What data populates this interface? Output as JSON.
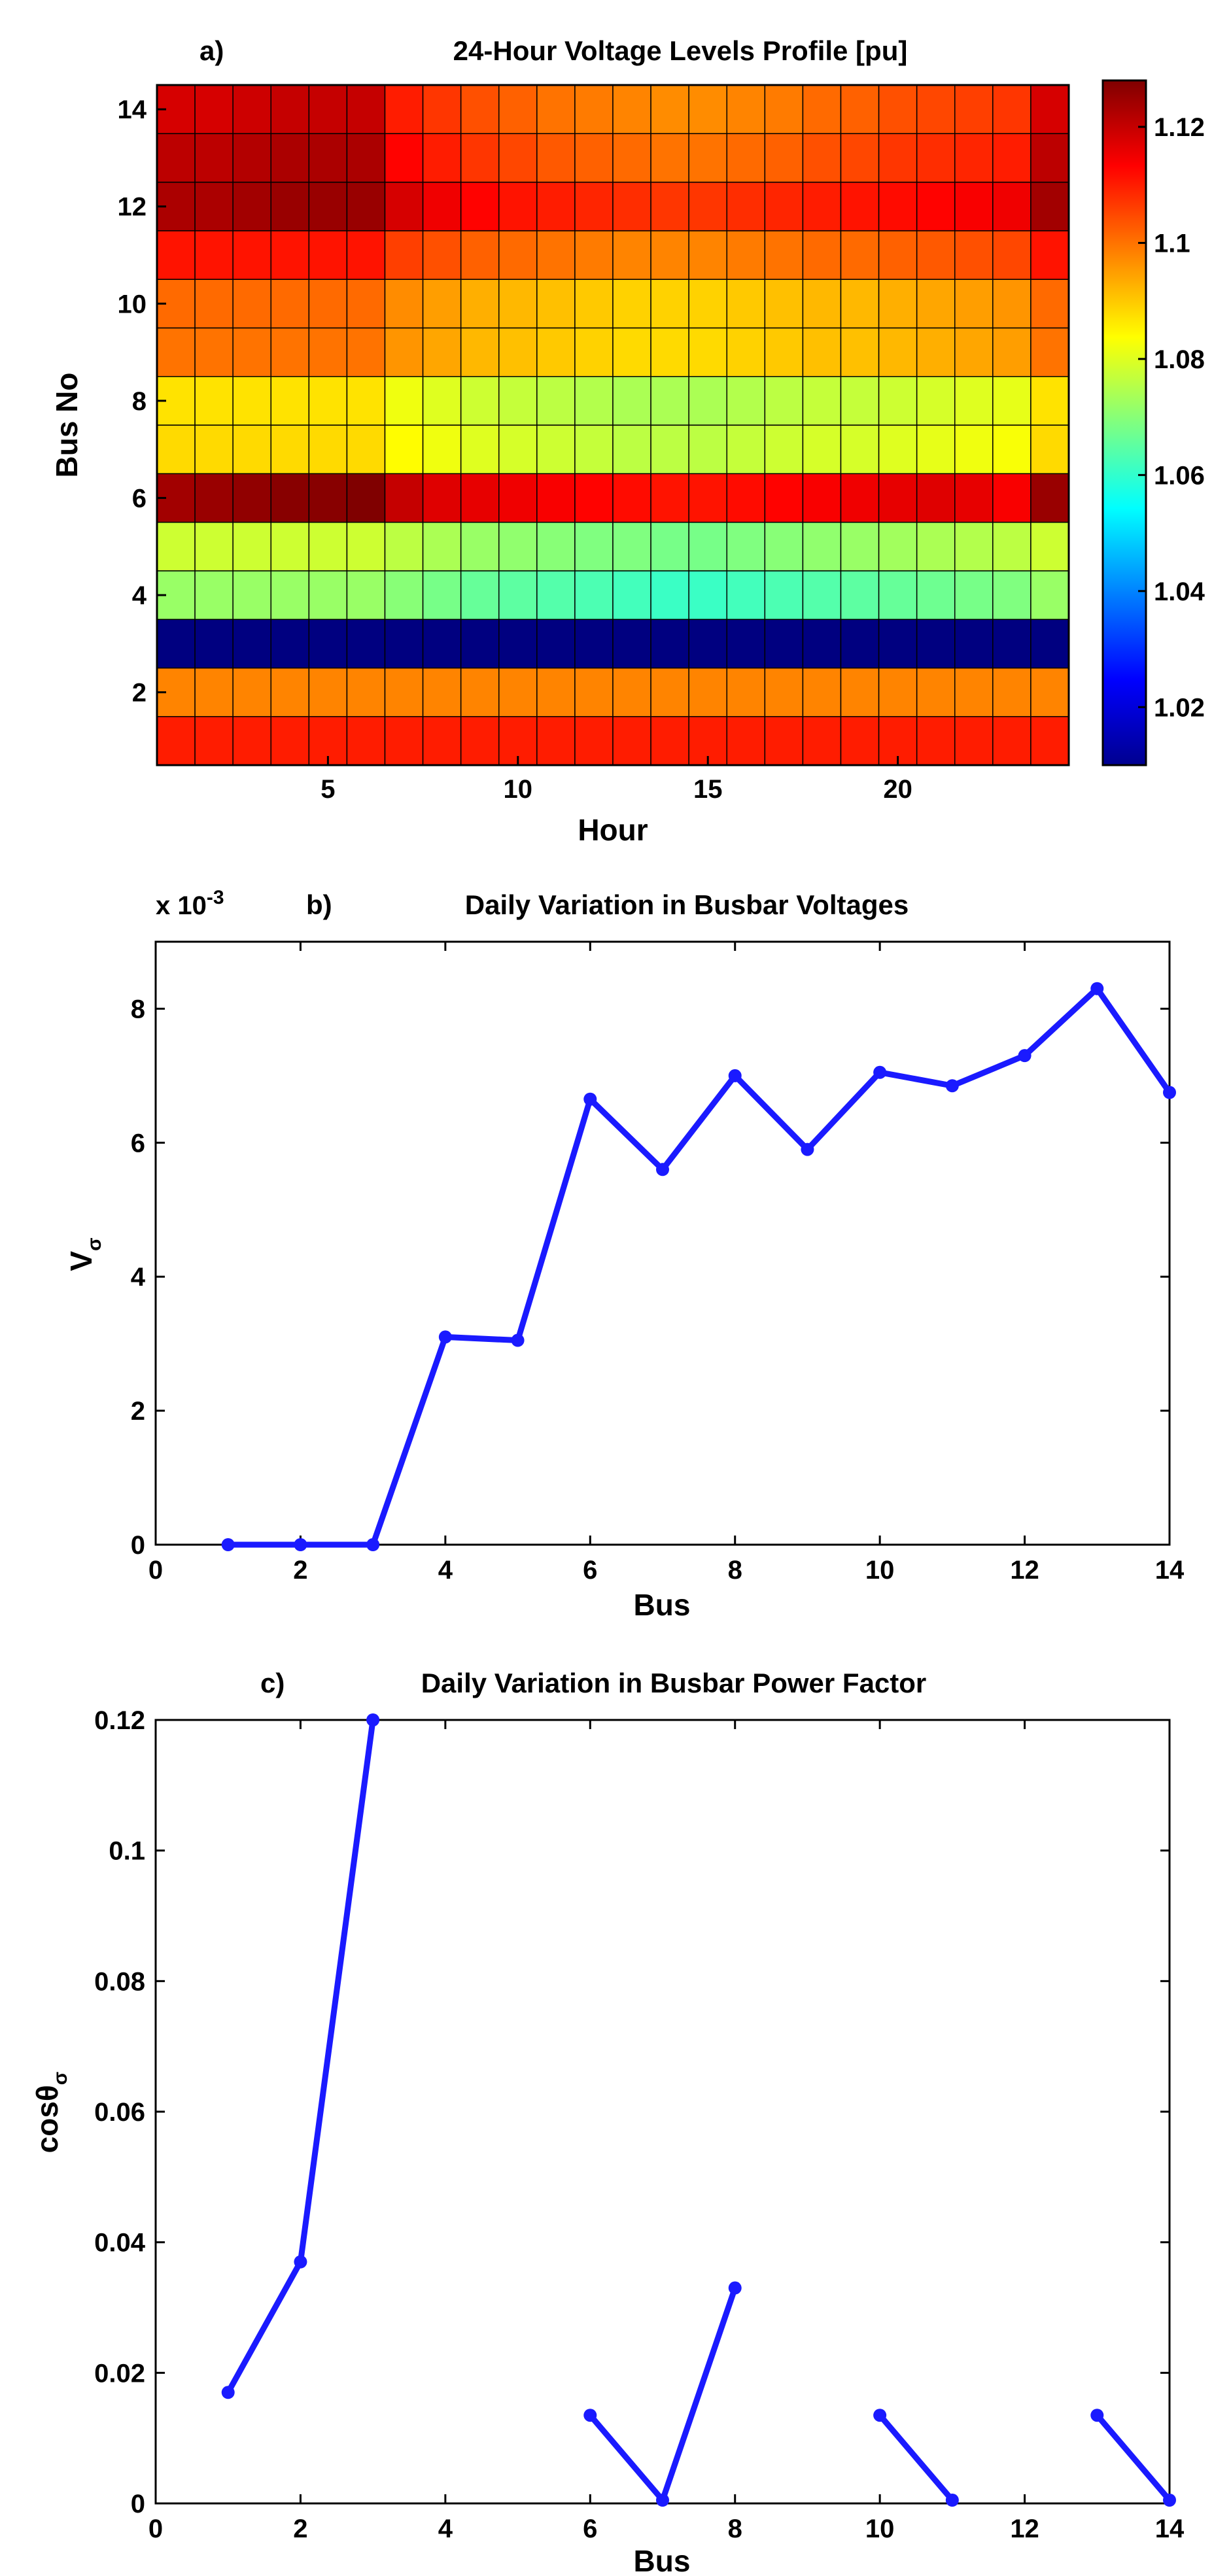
{
  "chart_data": [
    {
      "type": "heatmap",
      "panel": "a)",
      "title": "24-Hour Voltage Levels Profile [pu]",
      "xlabel": "Hour",
      "ylabel": "Bus No",
      "x_ticks": [
        "5",
        "10",
        "15",
        "20"
      ],
      "y_ticks": [
        "2",
        "4",
        "6",
        "8",
        "10",
        "12",
        "14"
      ],
      "colorbar_ticks": [
        "1.02",
        "1.04",
        "1.06",
        "1.08",
        "1.1",
        "1.12"
      ],
      "colorbar_range": [
        1.01,
        1.128
      ],
      "colormap": "jet",
      "hours": [
        1,
        2,
        3,
        4,
        5,
        6,
        7,
        8,
        9,
        10,
        11,
        12,
        13,
        14,
        15,
        16,
        17,
        18,
        19,
        20,
        21,
        22,
        23,
        24
      ],
      "buses": [
        1,
        2,
        3,
        4,
        5,
        6,
        7,
        8,
        9,
        10,
        11,
        12,
        13,
        14
      ],
      "values": [
        [
          1.11,
          1.11,
          1.11,
          1.11,
          1.11,
          1.11,
          1.11,
          1.11,
          1.11,
          1.11,
          1.11,
          1.11,
          1.11,
          1.11,
          1.11,
          1.11,
          1.11,
          1.11,
          1.11,
          1.11,
          1.11,
          1.11,
          1.11,
          1.11
        ],
        [
          1.098,
          1.098,
          1.098,
          1.098,
          1.098,
          1.098,
          1.098,
          1.098,
          1.098,
          1.098,
          1.098,
          1.098,
          1.098,
          1.098,
          1.098,
          1.098,
          1.098,
          1.098,
          1.098,
          1.098,
          1.098,
          1.098,
          1.098,
          1.098
        ],
        [
          1.01,
          1.01,
          1.01,
          1.01,
          1.01,
          1.01,
          1.01,
          1.01,
          1.01,
          1.01,
          1.01,
          1.01,
          1.01,
          1.01,
          1.01,
          1.01,
          1.01,
          1.01,
          1.01,
          1.01,
          1.01,
          1.01,
          1.01,
          1.01
        ],
        [
          1.072,
          1.072,
          1.072,
          1.072,
          1.072,
          1.072,
          1.07,
          1.068,
          1.066,
          1.065,
          1.064,
          1.063,
          1.062,
          1.061,
          1.061,
          1.062,
          1.063,
          1.064,
          1.065,
          1.066,
          1.067,
          1.068,
          1.069,
          1.072
        ],
        [
          1.078,
          1.078,
          1.078,
          1.078,
          1.078,
          1.078,
          1.076,
          1.074,
          1.072,
          1.071,
          1.07,
          1.069,
          1.069,
          1.068,
          1.068,
          1.069,
          1.07,
          1.071,
          1.072,
          1.073,
          1.074,
          1.075,
          1.076,
          1.078
        ],
        [
          1.124,
          1.125,
          1.126,
          1.127,
          1.127,
          1.128,
          1.12,
          1.117,
          1.116,
          1.115,
          1.114,
          1.113,
          1.112,
          1.111,
          1.111,
          1.112,
          1.113,
          1.114,
          1.115,
          1.116,
          1.117,
          1.116,
          1.114,
          1.125
        ],
        [
          1.088,
          1.088,
          1.088,
          1.088,
          1.088,
          1.088,
          1.084,
          1.082,
          1.08,
          1.079,
          1.078,
          1.077,
          1.076,
          1.076,
          1.076,
          1.077,
          1.078,
          1.079,
          1.079,
          1.08,
          1.081,
          1.082,
          1.083,
          1.088
        ],
        [
          1.087,
          1.087,
          1.087,
          1.087,
          1.087,
          1.087,
          1.082,
          1.08,
          1.078,
          1.077,
          1.076,
          1.075,
          1.074,
          1.074,
          1.074,
          1.075,
          1.076,
          1.077,
          1.077,
          1.078,
          1.079,
          1.08,
          1.081,
          1.087
        ],
        [
          1.1,
          1.1,
          1.1,
          1.1,
          1.1,
          1.1,
          1.096,
          1.094,
          1.092,
          1.091,
          1.09,
          1.089,
          1.088,
          1.088,
          1.088,
          1.089,
          1.09,
          1.091,
          1.091,
          1.092,
          1.093,
          1.094,
          1.095,
          1.1
        ],
        [
          1.101,
          1.101,
          1.101,
          1.101,
          1.101,
          1.101,
          1.097,
          1.095,
          1.093,
          1.092,
          1.091,
          1.09,
          1.089,
          1.089,
          1.089,
          1.09,
          1.091,
          1.092,
          1.092,
          1.093,
          1.094,
          1.095,
          1.096,
          1.101
        ],
        [
          1.111,
          1.111,
          1.111,
          1.111,
          1.111,
          1.111,
          1.106,
          1.104,
          1.102,
          1.101,
          1.1,
          1.099,
          1.098,
          1.098,
          1.098,
          1.099,
          1.1,
          1.101,
          1.101,
          1.102,
          1.103,
          1.104,
          1.105,
          1.111
        ],
        [
          1.123,
          1.123,
          1.124,
          1.125,
          1.125,
          1.125,
          1.118,
          1.115,
          1.113,
          1.111,
          1.11,
          1.109,
          1.108,
          1.107,
          1.107,
          1.108,
          1.109,
          1.11,
          1.111,
          1.112,
          1.113,
          1.114,
          1.115,
          1.124
        ],
        [
          1.121,
          1.121,
          1.122,
          1.123,
          1.123,
          1.123,
          1.113,
          1.11,
          1.107,
          1.105,
          1.103,
          1.102,
          1.101,
          1.1,
          1.1,
          1.101,
          1.102,
          1.104,
          1.105,
          1.107,
          1.108,
          1.109,
          1.11,
          1.121
        ],
        [
          1.118,
          1.118,
          1.119,
          1.12,
          1.12,
          1.12,
          1.11,
          1.107,
          1.104,
          1.102,
          1.1,
          1.099,
          1.098,
          1.097,
          1.097,
          1.098,
          1.099,
          1.101,
          1.102,
          1.104,
          1.105,
          1.106,
          1.107,
          1.118
        ]
      ]
    },
    {
      "type": "line",
      "panel": "b)",
      "title": "Daily Variation in Busbar Voltages",
      "xlabel": "Bus",
      "ylabel": "V",
      "ylabel_subscript": "σ",
      "y_multiplier": "x 10",
      "y_multiplier_exponent": "-3",
      "xlim": [
        0,
        14
      ],
      "ylim": [
        0,
        9
      ],
      "x_ticks": [
        "0",
        "2",
        "4",
        "6",
        "8",
        "10",
        "12",
        "14"
      ],
      "y_ticks": [
        "0",
        "2",
        "4",
        "6",
        "8"
      ],
      "series": [
        {
          "x": [
            1,
            2,
            3,
            4,
            5,
            6,
            7,
            8,
            9,
            10,
            11,
            12,
            13,
            14
          ],
          "y": [
            0.0,
            0.0,
            0.0,
            3.1,
            3.05,
            6.65,
            5.6,
            7.0,
            5.9,
            7.05,
            6.85,
            7.3,
            8.3,
            6.75
          ],
          "color": "#1a1aff"
        }
      ]
    },
    {
      "type": "line",
      "panel": "c)",
      "title": "Daily Variation in Busbar Power Factor",
      "xlabel": "Bus",
      "ylabel": "cosθ",
      "ylabel_subscript": "σ",
      "xlim": [
        0,
        14
      ],
      "ylim": [
        0,
        0.12
      ],
      "x_ticks": [
        "0",
        "2",
        "4",
        "6",
        "8",
        "10",
        "12",
        "14"
      ],
      "y_ticks": [
        "0",
        "0.02",
        "0.04",
        "0.06",
        "0.08",
        "0.1",
        "0.12"
      ],
      "series": [
        {
          "x": [
            1,
            2,
            3,
            4,
            5,
            6,
            7,
            8,
            9,
            10,
            11,
            12,
            13,
            14
          ],
          "y": [
            0.017,
            0.037,
            0.12,
            null,
            null,
            0.0135,
            0.0005,
            0.033,
            null,
            0.0135,
            0.0005,
            null,
            0.0135,
            0.0005
          ],
          "color": "#1a1aff"
        }
      ]
    }
  ]
}
